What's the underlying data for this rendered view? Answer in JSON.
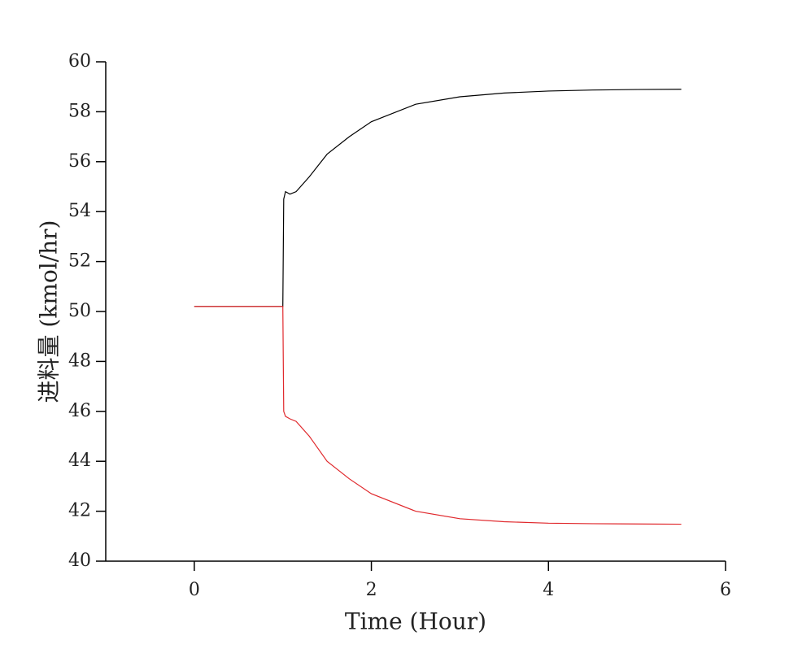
{
  "chart_data": {
    "type": "line",
    "x_label": "Time (Hour)",
    "y_label": "进料量 (kmol/hr)",
    "x": [
      0,
      0.5,
      1.0,
      1.01,
      1.03,
      1.08,
      1.15,
      1.3,
      1.5,
      1.75,
      2,
      2.5,
      3,
      3.5,
      4,
      4.5,
      5,
      5.5
    ],
    "series": [
      {
        "color": "#000000",
        "values": [
          50.2,
          50.2,
          50.2,
          54.5,
          54.8,
          54.7,
          54.8,
          55.4,
          56.3,
          57.0,
          57.6,
          58.3,
          58.6,
          58.75,
          58.83,
          58.87,
          58.89,
          58.9
        ]
      },
      {
        "color": "#e0282c",
        "values": [
          50.2,
          50.2,
          50.2,
          46.0,
          45.8,
          45.7,
          45.6,
          45.0,
          44.0,
          43.3,
          42.7,
          42.0,
          41.7,
          41.58,
          41.52,
          41.5,
          41.49,
          41.48
        ]
      }
    ],
    "xlim": [
      -1,
      6
    ],
    "xticks": [
      0,
      2,
      4,
      6
    ],
    "ylim": [
      40,
      60
    ],
    "yticks": [
      40,
      42,
      44,
      46,
      48,
      50,
      52,
      54,
      56,
      58,
      60
    ]
  }
}
